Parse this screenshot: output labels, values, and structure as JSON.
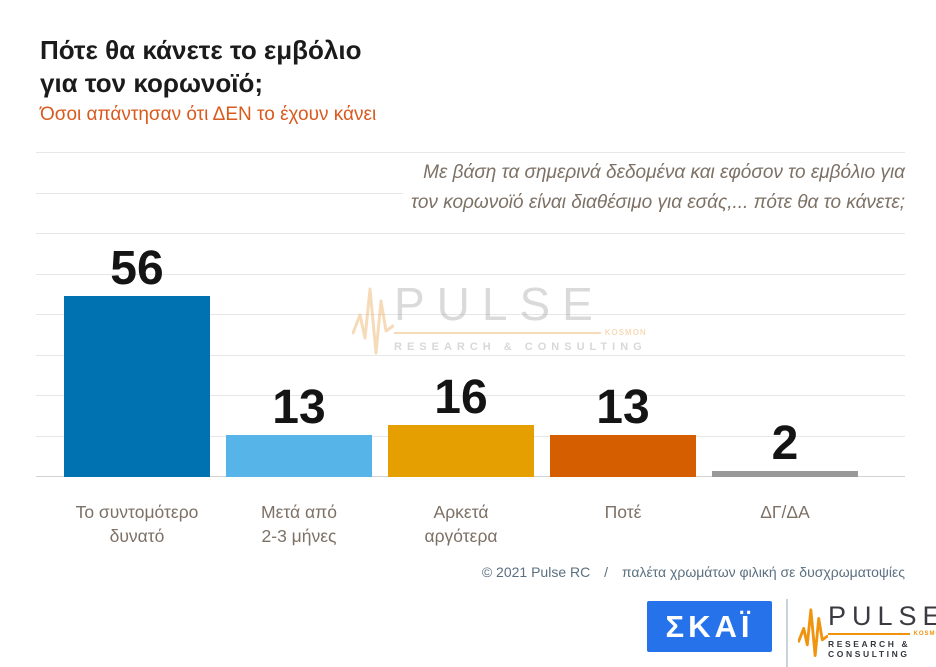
{
  "header": {
    "title_line1": "Πότε θα κάνετε το εμβόλιο",
    "title_line2": "για τον κορωνοϊό;",
    "subtitle": "Όσοι απάντησαν ότι ΔΕΝ το έχουν κάνει"
  },
  "annotation": {
    "line1": "Με βάση τα σημερινά δεδομένα και εφόσον το εμβόλιο για",
    "line2": "τον κορωνοϊό είναι διαθέσιμο για εσάς,... πότε θα το κάνετε;"
  },
  "chart_data": {
    "type": "bar",
    "title": "Πότε θα κάνετε το εμβόλιο για τον κορωνοϊό;",
    "subtitle": "Όσοι απάντησαν ότι ΔΕΝ το έχουν κάνει",
    "question": "Με βάση τα σημερινά δεδομένα και εφόσον το εμβόλιο για τον κορωνοϊό είναι διαθέσιμο για εσάς,... πότε θα το κάνετε;",
    "categories": [
      "Το συντομότερο δυνατό",
      "Μετά από 2-3 μήνες",
      "Αρκετά αργότερα",
      "Ποτέ",
      "ΔΓ/ΔΑ"
    ],
    "category_lines": [
      [
        "Το συντομότερο",
        "δυνατό"
      ],
      [
        "Μετά από",
        "2-3 μήνες"
      ],
      [
        "Αρκετά",
        "αργότερα"
      ],
      [
        "Ποτέ"
      ],
      [
        "ΔΓ/ΔΑ"
      ]
    ],
    "values": [
      56,
      13,
      16,
      13,
      2
    ],
    "colors": [
      "#0072B2",
      "#56B4E9",
      "#E69F00",
      "#D55E00",
      "#999999"
    ],
    "xlabel": "",
    "ylabel": "",
    "ylim": [
      0,
      100
    ],
    "grid": true,
    "grid_divisions": 8,
    "legend": false,
    "data_labels": true
  },
  "footer": {
    "credit": "© 2021 Pulse RC",
    "separator": "/",
    "note": "παλέτα χρωμάτων φιλική σε δυσχρωματοψίες"
  },
  "logos": {
    "skai": {
      "label": "ΣΚΑΪ",
      "bg_color": "#2572EB"
    },
    "pulse": {
      "name": "PULSE",
      "tagline": "KOSMON",
      "subtitle": "RESEARCH & CONSULTING",
      "accent_color": "#F0940F"
    }
  }
}
